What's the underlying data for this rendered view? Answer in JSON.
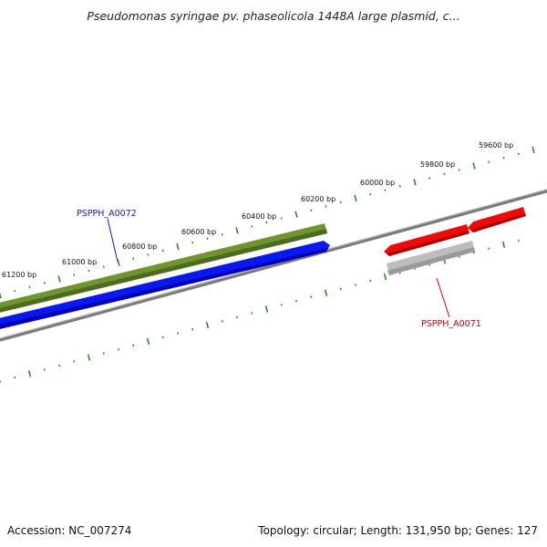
{
  "title": "Pseudomonas syringae pv. phaseolicola 1448A large plasmid, c...",
  "footer": {
    "accession": "Accession: NC_007274",
    "summary": "Topology: circular; Length: 131,950 bp; Genes: 127"
  },
  "colors": {
    "backbone": "#7a7a7a",
    "ticks": "#2a8a2a",
    "gene_green": "#6f9430",
    "gene_blue": "#0a18f0",
    "gene_red": "#ee0a0a",
    "gene_gray": "#b8b8b8",
    "label_blue": "#1a1aa0",
    "label_red": "#c00000"
  },
  "ruler": {
    "ticks": [
      {
        "label": "59600 bp"
      },
      {
        "label": "59800 bp"
      },
      {
        "label": "60000 bp"
      },
      {
        "label": "60200 bp"
      },
      {
        "label": "60400 bp"
      },
      {
        "label": "60600 bp"
      },
      {
        "label": "60800 bp"
      },
      {
        "label": "61000 bp"
      },
      {
        "label": "61200 bp"
      }
    ]
  },
  "labels": {
    "blue_gene": "PSPPH_A0072",
    "red_gene": "PSPPH_A0071"
  }
}
